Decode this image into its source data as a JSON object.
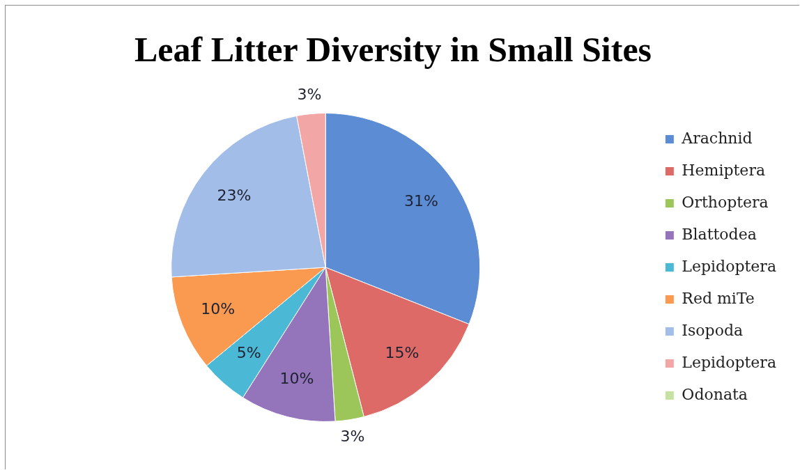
{
  "chart_data": {
    "type": "pie",
    "title": "Leaf Litter Diversity in Small Sites",
    "categories": [
      "Arachnid",
      "Hemiptera",
      "Orthoptera",
      "Blattodea",
      "Lepidoptera",
      "Red miTe",
      "Isopoda",
      "Lepidoptera",
      "Odonata"
    ],
    "values": [
      31,
      15,
      3,
      10,
      5,
      10,
      23,
      3,
      0
    ],
    "colors": [
      "#5c8cd4",
      "#de6a68",
      "#9cc65a",
      "#9474bb",
      "#4bb8d6",
      "#f99a50",
      "#a3bde9",
      "#f2a6a6",
      "#c5e2a0"
    ],
    "value_labels": [
      "31%",
      "15%",
      "3%",
      "10%",
      "5%",
      "10%",
      "23%",
      "3%",
      null
    ],
    "legend": "right"
  }
}
